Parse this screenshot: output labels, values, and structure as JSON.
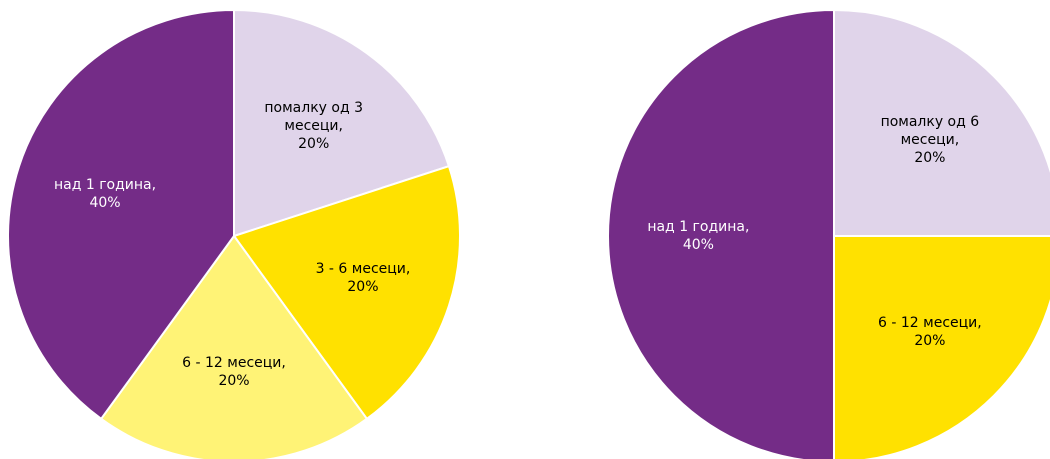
{
  "chart_data": [
    {
      "type": "pie",
      "categories": [
        "помалку од 3 месеци,",
        "3 - 6 месеци,",
        "6 - 12 месеци,",
        "над 1 година,"
      ],
      "values": [
        20,
        20,
        20,
        40
      ],
      "value_labels": [
        "20%",
        "20%",
        "20%",
        "40%"
      ],
      "colors": [
        "#e0d4ea",
        "#ffe100",
        "#fff376",
        "#742c87"
      ]
    },
    {
      "type": "pie",
      "categories": [
        "помалку од 6 месеци,",
        "6 - 12 месеци,",
        "над 1 година,"
      ],
      "values": [
        20,
        20,
        40
      ],
      "value_labels": [
        "20%",
        "20%",
        "40%"
      ],
      "colors": [
        "#e0d4ea",
        "#ffe100",
        "#742c87"
      ]
    }
  ]
}
